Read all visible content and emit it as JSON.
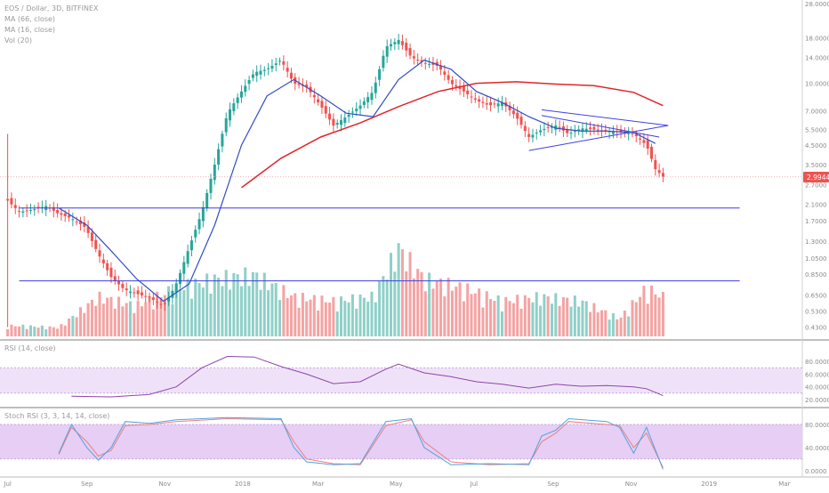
{
  "header": {
    "symbol_line": "EOS / Dollar, 3D, BITFINEX",
    "ma_slow_label": "MA (66, close)",
    "ma_fast_label": "MA (16, close)",
    "volume_label": "Vol (20)"
  },
  "rsi_panel": {
    "label": "RSI (14, close)",
    "ticks": [
      "80.0000",
      "60.0000",
      "40.0000",
      "20.0000"
    ]
  },
  "stoch_panel": {
    "label": "Stoch RSI (3, 3, 14, 14, close)",
    "ticks": [
      "80.0000",
      "40.0000",
      "0.0000"
    ]
  },
  "price_axis_ticks": [
    "28.0000",
    "18.0000",
    "14.0000",
    "10.0000",
    "7.0000",
    "5.5000",
    "4.5000",
    "3.5000",
    "2.7000",
    "2.1000",
    "1.7000",
    "1.3000",
    "1.0500",
    "0.8500",
    "0.6500",
    "0.5300",
    "0.4300"
  ],
  "current_price": "2.9944",
  "time_axis": [
    "Jul",
    "Sep",
    "Nov",
    "2018",
    "Mar",
    "May",
    "Jul",
    "Sep",
    "Nov",
    "2019",
    "Mar"
  ],
  "colors": {
    "up": "#26a69a",
    "down": "#ef5350",
    "ma_fast": "#2f4cc4",
    "ma_slow": "#e0262b",
    "trendline": "#3f3fe0",
    "rsi": "#8e44ad",
    "rsi_band": "#efe2f8",
    "stoch_k": "#4fa3e0",
    "stoch_d": "#ef7f7f",
    "stoch_band": "#e6cef5",
    "vol_up": "#8fd0c8",
    "vol_down": "#f4a3a3",
    "price_label_bg": "#ef5350"
  },
  "chart_data": {
    "type": "candlestick",
    "scale": "log",
    "ylim": [
      0.39,
      28
    ],
    "x_period": "3D",
    "x_range": [
      "2017-06-25",
      "2019-03-15"
    ],
    "price_series": [
      {
        "d": "2017-07-01",
        "c": 2.2
      },
      {
        "d": "2017-07-10",
        "c": 1.9
      },
      {
        "d": "2017-07-20",
        "c": 1.95
      },
      {
        "d": "2017-07-31",
        "c": 2.05
      },
      {
        "d": "2017-08-10",
        "c": 1.85
      },
      {
        "d": "2017-08-20",
        "c": 1.75
      },
      {
        "d": "2017-08-31",
        "c": 1.55
      },
      {
        "d": "2017-09-10",
        "c": 1.1
      },
      {
        "d": "2017-09-20",
        "c": 0.82
      },
      {
        "d": "2017-09-30",
        "c": 0.7
      },
      {
        "d": "2017-10-10",
        "c": 0.66
      },
      {
        "d": "2017-10-20",
        "c": 0.63
      },
      {
        "d": "2017-10-31",
        "c": 0.56
      },
      {
        "d": "2017-11-10",
        "c": 0.75
      },
      {
        "d": "2017-11-20",
        "c": 1.2
      },
      {
        "d": "2017-11-30",
        "c": 1.9
      },
      {
        "d": "2017-12-10",
        "c": 3.5
      },
      {
        "d": "2017-12-20",
        "c": 6.8
      },
      {
        "d": "2017-12-31",
        "c": 9.0
      },
      {
        "d": "2018-01-10",
        "c": 11.5
      },
      {
        "d": "2018-01-20",
        "c": 12.0
      },
      {
        "d": "2018-01-31",
        "c": 13.5
      },
      {
        "d": "2018-02-10",
        "c": 10.0
      },
      {
        "d": "2018-02-20",
        "c": 9.5
      },
      {
        "d": "2018-03-03",
        "c": 7.5
      },
      {
        "d": "2018-03-13",
        "c": 5.8
      },
      {
        "d": "2018-03-23",
        "c": 6.5
      },
      {
        "d": "2018-04-03",
        "c": 7.5
      },
      {
        "d": "2018-04-13",
        "c": 9.0
      },
      {
        "d": "2018-04-23",
        "c": 16.0
      },
      {
        "d": "2018-05-03",
        "c": 17.5
      },
      {
        "d": "2018-05-13",
        "c": 14.0
      },
      {
        "d": "2018-05-23",
        "c": 13.0
      },
      {
        "d": "2018-06-03",
        "c": 12.5
      },
      {
        "d": "2018-06-13",
        "c": 10.0
      },
      {
        "d": "2018-06-23",
        "c": 9.0
      },
      {
        "d": "2018-07-03",
        "c": 8.0
      },
      {
        "d": "2018-07-13",
        "c": 7.5
      },
      {
        "d": "2018-07-23",
        "c": 7.8
      },
      {
        "d": "2018-08-03",
        "c": 6.5
      },
      {
        "d": "2018-08-13",
        "c": 5.0
      },
      {
        "d": "2018-08-23",
        "c": 5.5
      },
      {
        "d": "2018-09-03",
        "c": 5.8
      },
      {
        "d": "2018-09-13",
        "c": 5.2
      },
      {
        "d": "2018-09-23",
        "c": 5.6
      },
      {
        "d": "2018-10-03",
        "c": 5.5
      },
      {
        "d": "2018-10-13",
        "c": 5.4
      },
      {
        "d": "2018-10-23",
        "c": 5.3
      },
      {
        "d": "2018-11-03",
        "c": 5.2
      },
      {
        "d": "2018-11-13",
        "c": 4.5
      },
      {
        "d": "2018-11-20",
        "c": 3.3
      },
      {
        "d": "2018-11-26",
        "c": 2.9944
      }
    ],
    "ma_fast_series": [
      {
        "d": "2017-08-10",
        "v": 2.0
      },
      {
        "d": "2017-09-01",
        "v": 1.6
      },
      {
        "d": "2017-09-20",
        "v": 1.15
      },
      {
        "d": "2017-10-10",
        "v": 0.8
      },
      {
        "d": "2017-10-31",
        "v": 0.6
      },
      {
        "d": "2017-11-20",
        "v": 0.75
      },
      {
        "d": "2017-12-10",
        "v": 1.6
      },
      {
        "d": "2017-12-31",
        "v": 4.5
      },
      {
        "d": "2018-01-20",
        "v": 8.5
      },
      {
        "d": "2018-02-10",
        "v": 10.5
      },
      {
        "d": "2018-03-03",
        "v": 8.5
      },
      {
        "d": "2018-03-23",
        "v": 6.8
      },
      {
        "d": "2018-04-13",
        "v": 6.5
      },
      {
        "d": "2018-05-03",
        "v": 10.5
      },
      {
        "d": "2018-05-23",
        "v": 13.5
      },
      {
        "d": "2018-06-13",
        "v": 12.0
      },
      {
        "d": "2018-07-03",
        "v": 9.0
      },
      {
        "d": "2018-07-23",
        "v": 7.8
      },
      {
        "d": "2018-08-13",
        "v": 6.5
      },
      {
        "d": "2018-09-03",
        "v": 5.6
      },
      {
        "d": "2018-09-23",
        "v": 5.4
      },
      {
        "d": "2018-10-13",
        "v": 5.4
      },
      {
        "d": "2018-11-03",
        "v": 5.3
      },
      {
        "d": "2018-11-20",
        "v": 4.6
      }
    ],
    "ma_slow_series": [
      {
        "d": "2017-12-31",
        "v": 2.6
      },
      {
        "d": "2018-01-31",
        "v": 3.8
      },
      {
        "d": "2018-03-03",
        "v": 5.0
      },
      {
        "d": "2018-04-03",
        "v": 6.0
      },
      {
        "d": "2018-05-03",
        "v": 7.4
      },
      {
        "d": "2018-06-03",
        "v": 9.0
      },
      {
        "d": "2018-07-03",
        "v": 10.0
      },
      {
        "d": "2018-08-03",
        "v": 10.2
      },
      {
        "d": "2018-09-03",
        "v": 9.9
      },
      {
        "d": "2018-10-03",
        "v": 9.7
      },
      {
        "d": "2018-11-03",
        "v": 8.9
      },
      {
        "d": "2018-11-26",
        "v": 7.5
      }
    ],
    "horizontal_levels": [
      2.0,
      0.78
    ],
    "trendlines": [
      {
        "from": {
          "d": "2018-08-13",
          "v": 4.2
        },
        "to": {
          "d": "2018-11-30",
          "v": 5.8
        }
      },
      {
        "from": {
          "d": "2018-08-23",
          "v": 7.1
        },
        "to": {
          "d": "2018-11-30",
          "v": 5.8
        }
      },
      {
        "from": {
          "d": "2018-08-23",
          "v": 6.6
        },
        "to": {
          "d": "2018-11-23",
          "v": 5.0
        }
      }
    ],
    "volume_series": [
      {
        "d": "2017-07-10",
        "v": 0.12
      },
      {
        "d": "2017-08-10",
        "v": 0.1
      },
      {
        "d": "2017-09-10",
        "v": 0.45
      },
      {
        "d": "2017-10-10",
        "v": 0.35
      },
      {
        "d": "2017-11-10",
        "v": 0.55
      },
      {
        "d": "2017-12-10",
        "v": 0.65
      },
      {
        "d": "2018-01-10",
        "v": 0.7
      },
      {
        "d": "2018-02-10",
        "v": 0.45
      },
      {
        "d": "2018-03-13",
        "v": 0.4
      },
      {
        "d": "2018-04-13",
        "v": 0.45
      },
      {
        "d": "2018-05-03",
        "v": 1.0
      },
      {
        "d": "2018-05-23",
        "v": 0.65
      },
      {
        "d": "2018-06-23",
        "v": 0.55
      },
      {
        "d": "2018-07-23",
        "v": 0.4
      },
      {
        "d": "2018-08-23",
        "v": 0.45
      },
      {
        "d": "2018-09-23",
        "v": 0.4
      },
      {
        "d": "2018-10-23",
        "v": 0.2
      },
      {
        "d": "2018-11-13",
        "v": 0.55
      },
      {
        "d": "2018-11-26",
        "v": 0.45
      }
    ],
    "rsi": {
      "ylim": [
        10,
        100
      ],
      "band": [
        30,
        70
      ],
      "series": [
        {
          "d": "2017-08-20",
          "v": 25
        },
        {
          "d": "2017-09-20",
          "v": 24
        },
        {
          "d": "2017-10-20",
          "v": 28
        },
        {
          "d": "2017-11-10",
          "v": 40
        },
        {
          "d": "2017-11-30",
          "v": 70
        },
        {
          "d": "2017-12-20",
          "v": 88
        },
        {
          "d": "2018-01-10",
          "v": 87
        },
        {
          "d": "2018-01-31",
          "v": 72
        },
        {
          "d": "2018-02-20",
          "v": 60
        },
        {
          "d": "2018-03-13",
          "v": 45
        },
        {
          "d": "2018-04-03",
          "v": 48
        },
        {
          "d": "2018-04-23",
          "v": 68
        },
        {
          "d": "2018-05-03",
          "v": 76
        },
        {
          "d": "2018-05-23",
          "v": 62
        },
        {
          "d": "2018-06-13",
          "v": 56
        },
        {
          "d": "2018-07-03",
          "v": 48
        },
        {
          "d": "2018-07-23",
          "v": 44
        },
        {
          "d": "2018-08-13",
          "v": 38
        },
        {
          "d": "2018-09-03",
          "v": 44
        },
        {
          "d": "2018-09-23",
          "v": 41
        },
        {
          "d": "2018-10-13",
          "v": 42
        },
        {
          "d": "2018-11-03",
          "v": 40
        },
        {
          "d": "2018-11-13",
          "v": 37
        },
        {
          "d": "2018-11-26",
          "v": 26
        }
      ]
    },
    "stoch_rsi": {
      "ylim": [
        -5,
        100
      ],
      "band": [
        20,
        80
      ],
      "k_series": [
        {
          "d": "2017-08-10",
          "v": 30
        },
        {
          "d": "2017-08-20",
          "v": 80
        },
        {
          "d": "2017-09-01",
          "v": 40
        },
        {
          "d": "2017-09-10",
          "v": 18
        },
        {
          "d": "2017-09-20",
          "v": 40
        },
        {
          "d": "2017-10-01",
          "v": 85
        },
        {
          "d": "2017-10-20",
          "v": 82
        },
        {
          "d": "2017-11-10",
          "v": 88
        },
        {
          "d": "2017-12-20",
          "v": 92
        },
        {
          "d": "2018-01-31",
          "v": 90
        },
        {
          "d": "2018-02-10",
          "v": 40
        },
        {
          "d": "2018-02-20",
          "v": 15
        },
        {
          "d": "2018-03-13",
          "v": 10
        },
        {
          "d": "2018-04-03",
          "v": 12
        },
        {
          "d": "2018-04-23",
          "v": 85
        },
        {
          "d": "2018-05-13",
          "v": 90
        },
        {
          "d": "2018-05-23",
          "v": 40
        },
        {
          "d": "2018-06-13",
          "v": 10
        },
        {
          "d": "2018-07-13",
          "v": 12
        },
        {
          "d": "2018-08-13",
          "v": 10
        },
        {
          "d": "2018-08-23",
          "v": 60
        },
        {
          "d": "2018-09-03",
          "v": 70
        },
        {
          "d": "2018-09-13",
          "v": 90
        },
        {
          "d": "2018-10-13",
          "v": 85
        },
        {
          "d": "2018-10-23",
          "v": 75
        },
        {
          "d": "2018-11-03",
          "v": 30
        },
        {
          "d": "2018-11-13",
          "v": 75
        },
        {
          "d": "2018-11-26",
          "v": 2
        }
      ],
      "d_series": [
        {
          "d": "2017-08-10",
          "v": 28
        },
        {
          "d": "2017-08-20",
          "v": 75
        },
        {
          "d": "2017-09-01",
          "v": 50
        },
        {
          "d": "2017-09-10",
          "v": 25
        },
        {
          "d": "2017-09-20",
          "v": 35
        },
        {
          "d": "2017-10-01",
          "v": 78
        },
        {
          "d": "2017-10-20",
          "v": 80
        },
        {
          "d": "2017-11-10",
          "v": 85
        },
        {
          "d": "2017-12-20",
          "v": 90
        },
        {
          "d": "2018-01-31",
          "v": 88
        },
        {
          "d": "2018-02-10",
          "v": 50
        },
        {
          "d": "2018-02-20",
          "v": 20
        },
        {
          "d": "2018-03-13",
          "v": 12
        },
        {
          "d": "2018-04-03",
          "v": 10
        },
        {
          "d": "2018-04-23",
          "v": 78
        },
        {
          "d": "2018-05-13",
          "v": 88
        },
        {
          "d": "2018-05-23",
          "v": 50
        },
        {
          "d": "2018-06-13",
          "v": 15
        },
        {
          "d": "2018-07-13",
          "v": 10
        },
        {
          "d": "2018-08-13",
          "v": 12
        },
        {
          "d": "2018-08-23",
          "v": 50
        },
        {
          "d": "2018-09-03",
          "v": 65
        },
        {
          "d": "2018-09-13",
          "v": 85
        },
        {
          "d": "2018-10-13",
          "v": 80
        },
        {
          "d": "2018-10-23",
          "v": 78
        },
        {
          "d": "2018-11-03",
          "v": 40
        },
        {
          "d": "2018-11-13",
          "v": 65
        },
        {
          "d": "2018-11-26",
          "v": 5
        }
      ]
    }
  }
}
